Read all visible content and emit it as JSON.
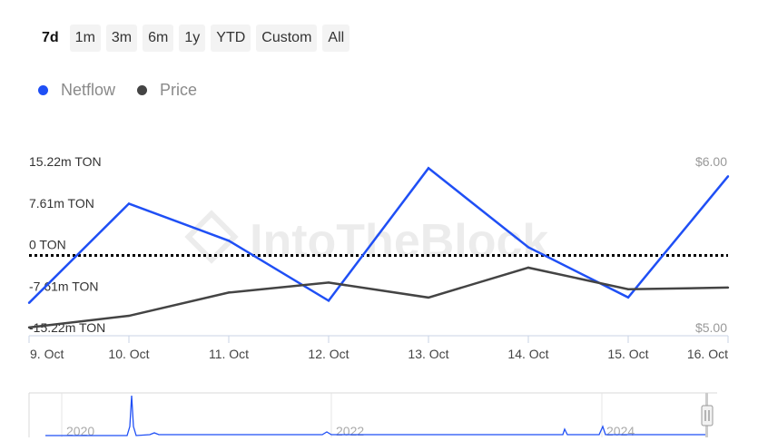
{
  "range_selector": {
    "buttons": [
      "7d",
      "1m",
      "3m",
      "6m",
      "1y",
      "YTD",
      "Custom",
      "All"
    ],
    "active": "7d"
  },
  "legend": [
    {
      "name": "Netflow",
      "color": "#1f4ff5"
    },
    {
      "name": "Price",
      "color": "#444444"
    }
  ],
  "watermark": "IntoTheBlock",
  "colors": {
    "netflow": "#1f4ff5",
    "price": "#444444",
    "zero_line": "#000000",
    "axis": "#c8d3e6"
  },
  "chart_data": {
    "type": "line",
    "categories": [
      "9. Oct",
      "10. Oct",
      "11. Oct",
      "12. Oct",
      "13. Oct",
      "14. Oct",
      "15. Oct",
      "16. Oct"
    ],
    "left_axis": {
      "labels": [
        "15.22m TON",
        "7.61m TON",
        "0 TON",
        "-7.61m TON",
        "-15.22m TON"
      ],
      "values": [
        15.22,
        7.61,
        0,
        -7.61,
        -15.22
      ],
      "unit": "m TON",
      "range": [
        -15.22,
        15.22
      ]
    },
    "right_axis": {
      "labels": [
        "$6.00",
        "$5.00"
      ],
      "values": [
        6.0,
        5.0
      ],
      "range": [
        5.0,
        6.0
      ]
    },
    "series": [
      {
        "name": "Netflow",
        "axis": "left",
        "values": [
          -9.2,
          9.0,
          2.2,
          -8.8,
          15.5,
          1.0,
          -8.2,
          14.0
        ]
      },
      {
        "name": "Price",
        "axis": "right",
        "values": [
          5.05,
          5.12,
          5.26,
          5.32,
          5.23,
          5.41,
          5.28,
          5.29
        ]
      }
    ],
    "zero_line": "dotted",
    "navigator": {
      "year_labels": [
        "2020",
        "2022",
        "2024"
      ]
    }
  }
}
